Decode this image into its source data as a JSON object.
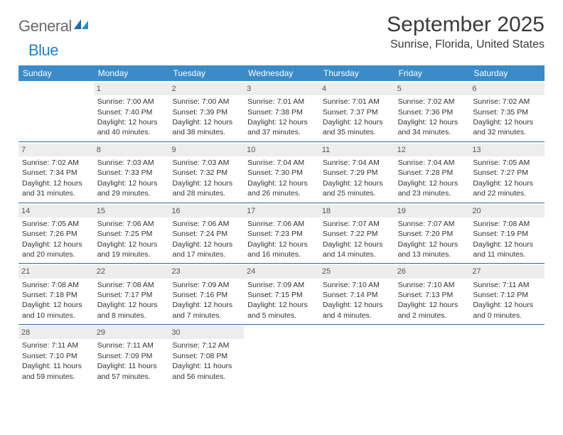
{
  "logo": {
    "part1": "General",
    "part2": "Blue"
  },
  "title": "September 2025",
  "subtitle": "Sunrise, Florida, United States",
  "calendar": {
    "header_bg": "#3b8bc9",
    "header_fg": "#ffffff",
    "row_border": "#2a6aa3",
    "daynum_bg": "#ededed",
    "text_color": "#333333",
    "days": [
      "Sunday",
      "Monday",
      "Tuesday",
      "Wednesday",
      "Thursday",
      "Friday",
      "Saturday"
    ],
    "weeks": [
      [
        null,
        {
          "n": "1",
          "sr": "Sunrise: 7:00 AM",
          "ss": "Sunset: 7:40 PM",
          "d1": "Daylight: 12 hours",
          "d2": "and 40 minutes."
        },
        {
          "n": "2",
          "sr": "Sunrise: 7:00 AM",
          "ss": "Sunset: 7:39 PM",
          "d1": "Daylight: 12 hours",
          "d2": "and 38 minutes."
        },
        {
          "n": "3",
          "sr": "Sunrise: 7:01 AM",
          "ss": "Sunset: 7:38 PM",
          "d1": "Daylight: 12 hours",
          "d2": "and 37 minutes."
        },
        {
          "n": "4",
          "sr": "Sunrise: 7:01 AM",
          "ss": "Sunset: 7:37 PM",
          "d1": "Daylight: 12 hours",
          "d2": "and 35 minutes."
        },
        {
          "n": "5",
          "sr": "Sunrise: 7:02 AM",
          "ss": "Sunset: 7:36 PM",
          "d1": "Daylight: 12 hours",
          "d2": "and 34 minutes."
        },
        {
          "n": "6",
          "sr": "Sunrise: 7:02 AM",
          "ss": "Sunset: 7:35 PM",
          "d1": "Daylight: 12 hours",
          "d2": "and 32 minutes."
        }
      ],
      [
        {
          "n": "7",
          "sr": "Sunrise: 7:02 AM",
          "ss": "Sunset: 7:34 PM",
          "d1": "Daylight: 12 hours",
          "d2": "and 31 minutes."
        },
        {
          "n": "8",
          "sr": "Sunrise: 7:03 AM",
          "ss": "Sunset: 7:33 PM",
          "d1": "Daylight: 12 hours",
          "d2": "and 29 minutes."
        },
        {
          "n": "9",
          "sr": "Sunrise: 7:03 AM",
          "ss": "Sunset: 7:32 PM",
          "d1": "Daylight: 12 hours",
          "d2": "and 28 minutes."
        },
        {
          "n": "10",
          "sr": "Sunrise: 7:04 AM",
          "ss": "Sunset: 7:30 PM",
          "d1": "Daylight: 12 hours",
          "d2": "and 26 minutes."
        },
        {
          "n": "11",
          "sr": "Sunrise: 7:04 AM",
          "ss": "Sunset: 7:29 PM",
          "d1": "Daylight: 12 hours",
          "d2": "and 25 minutes."
        },
        {
          "n": "12",
          "sr": "Sunrise: 7:04 AM",
          "ss": "Sunset: 7:28 PM",
          "d1": "Daylight: 12 hours",
          "d2": "and 23 minutes."
        },
        {
          "n": "13",
          "sr": "Sunrise: 7:05 AM",
          "ss": "Sunset: 7:27 PM",
          "d1": "Daylight: 12 hours",
          "d2": "and 22 minutes."
        }
      ],
      [
        {
          "n": "14",
          "sr": "Sunrise: 7:05 AM",
          "ss": "Sunset: 7:26 PM",
          "d1": "Daylight: 12 hours",
          "d2": "and 20 minutes."
        },
        {
          "n": "15",
          "sr": "Sunrise: 7:06 AM",
          "ss": "Sunset: 7:25 PM",
          "d1": "Daylight: 12 hours",
          "d2": "and 19 minutes."
        },
        {
          "n": "16",
          "sr": "Sunrise: 7:06 AM",
          "ss": "Sunset: 7:24 PM",
          "d1": "Daylight: 12 hours",
          "d2": "and 17 minutes."
        },
        {
          "n": "17",
          "sr": "Sunrise: 7:06 AM",
          "ss": "Sunset: 7:23 PM",
          "d1": "Daylight: 12 hours",
          "d2": "and 16 minutes."
        },
        {
          "n": "18",
          "sr": "Sunrise: 7:07 AM",
          "ss": "Sunset: 7:22 PM",
          "d1": "Daylight: 12 hours",
          "d2": "and 14 minutes."
        },
        {
          "n": "19",
          "sr": "Sunrise: 7:07 AM",
          "ss": "Sunset: 7:20 PM",
          "d1": "Daylight: 12 hours",
          "d2": "and 13 minutes."
        },
        {
          "n": "20",
          "sr": "Sunrise: 7:08 AM",
          "ss": "Sunset: 7:19 PM",
          "d1": "Daylight: 12 hours",
          "d2": "and 11 minutes."
        }
      ],
      [
        {
          "n": "21",
          "sr": "Sunrise: 7:08 AM",
          "ss": "Sunset: 7:18 PM",
          "d1": "Daylight: 12 hours",
          "d2": "and 10 minutes."
        },
        {
          "n": "22",
          "sr": "Sunrise: 7:08 AM",
          "ss": "Sunset: 7:17 PM",
          "d1": "Daylight: 12 hours",
          "d2": "and 8 minutes."
        },
        {
          "n": "23",
          "sr": "Sunrise: 7:09 AM",
          "ss": "Sunset: 7:16 PM",
          "d1": "Daylight: 12 hours",
          "d2": "and 7 minutes."
        },
        {
          "n": "24",
          "sr": "Sunrise: 7:09 AM",
          "ss": "Sunset: 7:15 PM",
          "d1": "Daylight: 12 hours",
          "d2": "and 5 minutes."
        },
        {
          "n": "25",
          "sr": "Sunrise: 7:10 AM",
          "ss": "Sunset: 7:14 PM",
          "d1": "Daylight: 12 hours",
          "d2": "and 4 minutes."
        },
        {
          "n": "26",
          "sr": "Sunrise: 7:10 AM",
          "ss": "Sunset: 7:13 PM",
          "d1": "Daylight: 12 hours",
          "d2": "and 2 minutes."
        },
        {
          "n": "27",
          "sr": "Sunrise: 7:11 AM",
          "ss": "Sunset: 7:12 PM",
          "d1": "Daylight: 12 hours",
          "d2": "and 0 minutes."
        }
      ],
      [
        {
          "n": "28",
          "sr": "Sunrise: 7:11 AM",
          "ss": "Sunset: 7:10 PM",
          "d1": "Daylight: 11 hours",
          "d2": "and 59 minutes."
        },
        {
          "n": "29",
          "sr": "Sunrise: 7:11 AM",
          "ss": "Sunset: 7:09 PM",
          "d1": "Daylight: 11 hours",
          "d2": "and 57 minutes."
        },
        {
          "n": "30",
          "sr": "Sunrise: 7:12 AM",
          "ss": "Sunset: 7:08 PM",
          "d1": "Daylight: 11 hours",
          "d2": "and 56 minutes."
        },
        null,
        null,
        null,
        null
      ]
    ]
  }
}
